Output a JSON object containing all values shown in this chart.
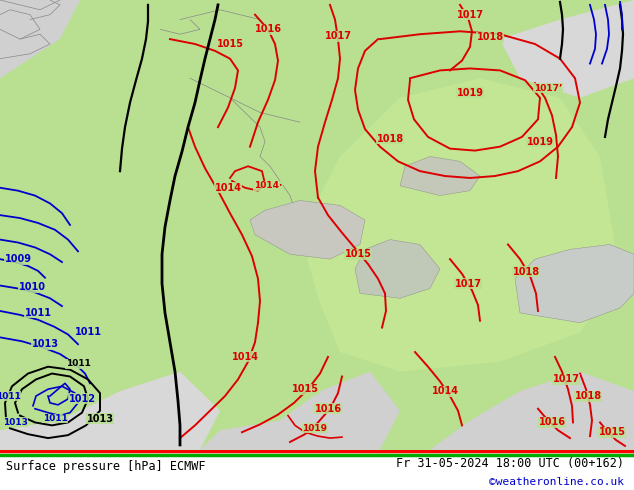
{
  "title_left": "Surface pressure [hPa] ECMWF",
  "title_right": "Fr 31-05-2024 18:00 UTC (00+162)",
  "watermark": "©weatheronline.co.uk",
  "land_green": "#b0d890",
  "land_light": "#c8e8a0",
  "gray_area": "#c0c0c0",
  "sea_gray": "#d8d8d8",
  "footer_bg": "#ffffff",
  "footer_text_color": "#000000",
  "watermark_color": "#0000cc",
  "isobar_red": "#dd0000",
  "isobar_black": "#000000",
  "isobar_blue": "#0000cc",
  "figsize": [
    6.34,
    4.9
  ],
  "dpi": 100
}
